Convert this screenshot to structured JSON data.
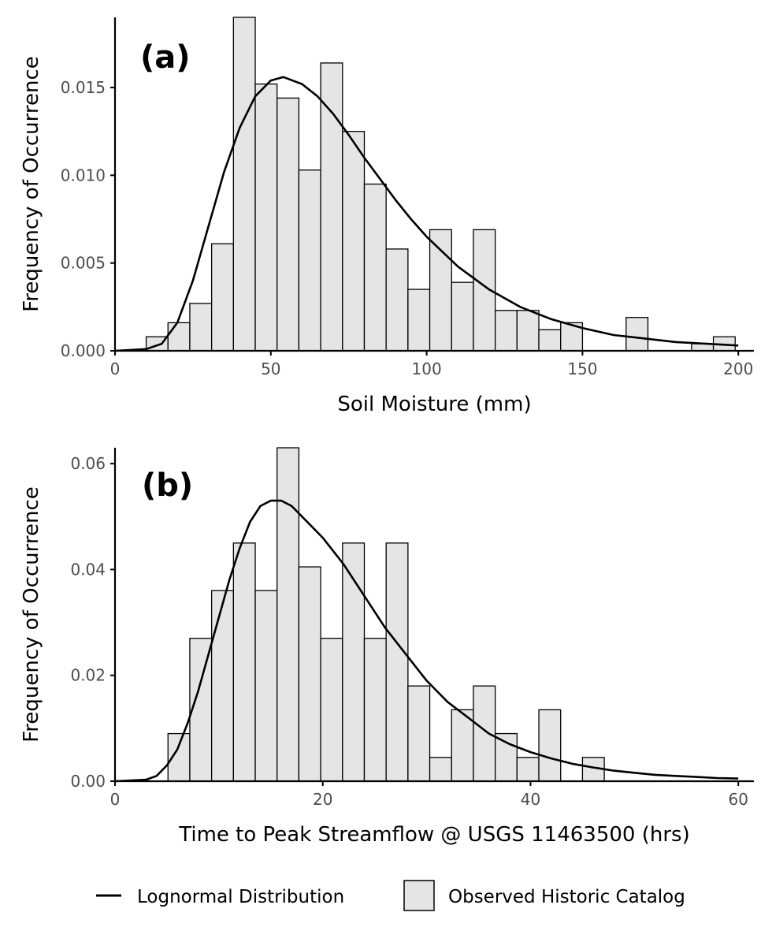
{
  "colors": {
    "bar_fill": "#e5e5e5",
    "bar_stroke": "#000000",
    "curve": "#000000",
    "axis": "#000000",
    "tick_text": "#4d4d4d"
  },
  "legend": {
    "placement": "bottom",
    "items": [
      {
        "label": "Lognormal Distribution",
        "kind": "line"
      },
      {
        "label": "Observed Historic Catalog",
        "kind": "box"
      }
    ]
  },
  "chart_data": [
    {
      "type": "bar",
      "panel_label": "(a)",
      "xlabel": "Soil Moisture (mm)",
      "ylabel": "Frequency of Occurrence",
      "xlim": [
        0,
        205
      ],
      "ylim": [
        0,
        0.019
      ],
      "x_ticks": [
        0,
        50,
        100,
        150,
        200
      ],
      "x_tick_labels": [
        "0",
        "50",
        "100",
        "150",
        "200"
      ],
      "y_ticks": [
        0,
        0.005,
        0.01,
        0.015
      ],
      "y_tick_labels": [
        "0.000",
        "0.005",
        "0.010",
        "0.015"
      ],
      "grid": false,
      "bin_width": 7,
      "bin_starts": [
        10,
        17,
        24,
        31,
        38,
        45,
        52,
        59,
        66,
        73,
        80,
        87,
        94,
        101,
        108,
        115,
        122,
        129,
        136,
        143,
        150,
        157,
        164,
        171,
        178,
        185,
        192
      ],
      "values": [
        0.0008,
        0.0016,
        0.0027,
        0.0061,
        0.019,
        0.0152,
        0.0144,
        0.0103,
        0.0164,
        0.0125,
        0.0095,
        0.0058,
        0.0035,
        0.0069,
        0.0039,
        0.0069,
        0.0023,
        0.0023,
        0.0012,
        0.0016,
        0,
        0,
        0.0019,
        0,
        0,
        0.0004,
        0.0008
      ],
      "curve": {
        "name": "Lognormal Distribution",
        "x": [
          0,
          10,
          15,
          20,
          25,
          30,
          35,
          40,
          45,
          50,
          54,
          60,
          65,
          70,
          75,
          80,
          85,
          90,
          95,
          100,
          110,
          120,
          130,
          140,
          150,
          160,
          170,
          180,
          190,
          200
        ],
        "y": [
          0,
          0.0001,
          0.0004,
          0.0016,
          0.004,
          0.0071,
          0.0102,
          0.0127,
          0.0145,
          0.0154,
          0.0156,
          0.0152,
          0.0145,
          0.0135,
          0.0123,
          0.011,
          0.0098,
          0.0086,
          0.0075,
          0.0065,
          0.0048,
          0.0035,
          0.0025,
          0.0018,
          0.0013,
          0.0009,
          0.0007,
          0.0005,
          0.0004,
          0.0003
        ]
      }
    },
    {
      "type": "bar",
      "panel_label": "(b)",
      "xlabel": "Time to Peak Streamflow @ USGS 11463500 (hrs)",
      "ylabel": "Frequency of Occurrence",
      "xlim": [
        0,
        61.5
      ],
      "ylim": [
        0,
        0.063
      ],
      "x_ticks": [
        0,
        20,
        40,
        60
      ],
      "x_tick_labels": [
        "0",
        "20",
        "40",
        "60"
      ],
      "y_ticks": [
        0,
        0.02,
        0.04,
        0.06
      ],
      "y_tick_labels": [
        "0.00",
        "0.02",
        "0.04",
        "0.06"
      ],
      "grid": false,
      "bin_width": 2.1,
      "bin_starts": [
        5.1,
        7.2,
        9.3,
        11.4,
        13.5,
        15.6,
        17.7,
        19.8,
        21.9,
        24.0,
        26.1,
        28.2,
        30.3,
        32.4,
        34.5,
        36.6,
        38.7,
        40.8,
        42.9,
        45.0
      ],
      "values": [
        0.009,
        0.027,
        0.036,
        0.045,
        0.036,
        0.063,
        0.0405,
        0.027,
        0.045,
        0.027,
        0.045,
        0.018,
        0.0045,
        0.0135,
        0.018,
        0.009,
        0.0045,
        0.0135,
        0,
        0.0045
      ],
      "curve": {
        "name": "Lognormal Distribution",
        "x": [
          0,
          3,
          4,
          5,
          6,
          7,
          8,
          9,
          10,
          11,
          12,
          13,
          14,
          15,
          16,
          17,
          18,
          19,
          20,
          22,
          24,
          26,
          28,
          30,
          32,
          34,
          36,
          38,
          40,
          42,
          44,
          46,
          48,
          50,
          52,
          54,
          56,
          58,
          60
        ],
        "y": [
          0,
          0.0003,
          0.001,
          0.003,
          0.006,
          0.011,
          0.017,
          0.024,
          0.031,
          0.038,
          0.044,
          0.049,
          0.052,
          0.053,
          0.053,
          0.052,
          0.05,
          0.048,
          0.046,
          0.041,
          0.035,
          0.029,
          0.024,
          0.019,
          0.015,
          0.012,
          0.009,
          0.007,
          0.0055,
          0.0043,
          0.0033,
          0.0026,
          0.002,
          0.0016,
          0.0012,
          0.001,
          0.0008,
          0.0006,
          0.0005
        ]
      }
    }
  ]
}
